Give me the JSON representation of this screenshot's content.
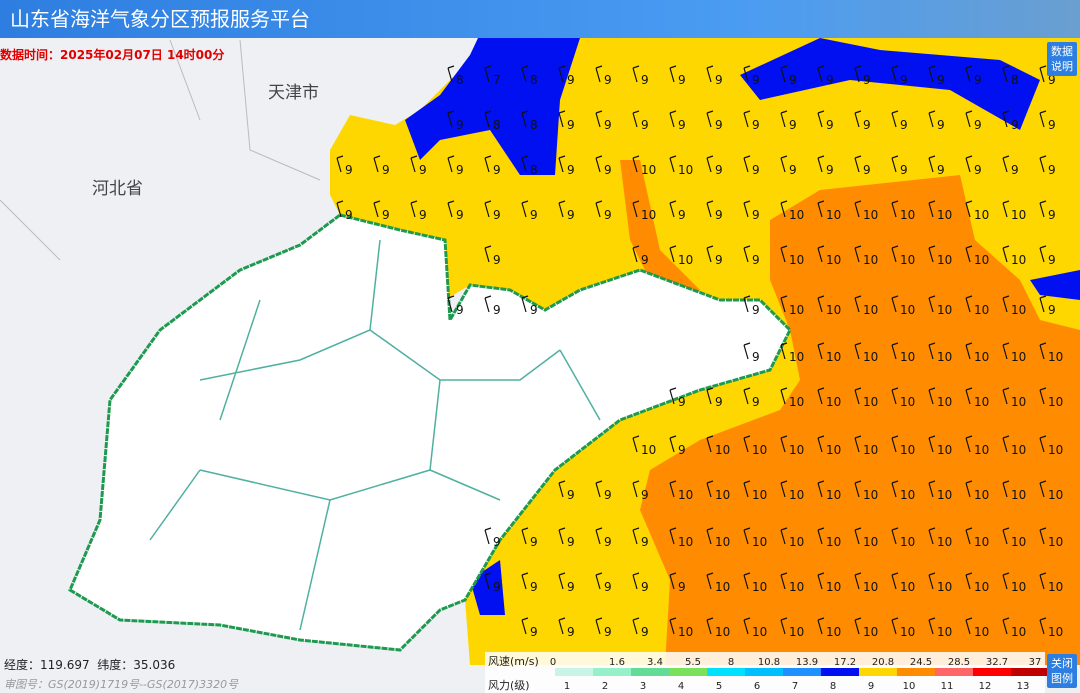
{
  "header": {
    "title": "山东省海洋气象分区预报服务平台"
  },
  "data_time": "数据时间：2025年02月07日 14时00分",
  "buttons": {
    "data_note": "数据说明",
    "close_legend": "关闭图例"
  },
  "places": [
    "天津市",
    "河北省"
  ],
  "wind_labels": [
    [
      null,
      null,
      null,
      8,
      7,
      8,
      9,
      9,
      9,
      9,
      9,
      9,
      9,
      9,
      9,
      9,
      9,
      9,
      8,
      9
    ],
    [
      null,
      null,
      null,
      9,
      8,
      8,
      9,
      9,
      9,
      9,
      9,
      9,
      9,
      9,
      9,
      9,
      9,
      9,
      9,
      9
    ],
    [
      9,
      9,
      9,
      9,
      9,
      8,
      9,
      9,
      10,
      10,
      9,
      9,
      9,
      9,
      9,
      9,
      9,
      9,
      9,
      9
    ],
    [
      9,
      9,
      9,
      9,
      9,
      9,
      9,
      9,
      10,
      9,
      9,
      9,
      10,
      10,
      10,
      10,
      10,
      10,
      10,
      9
    ],
    [
      null,
      null,
      null,
      null,
      9,
      null,
      null,
      null,
      9,
      10,
      9,
      9,
      10,
      10,
      10,
      10,
      10,
      10,
      10,
      9
    ],
    [
      null,
      null,
      null,
      9,
      9,
      9,
      null,
      null,
      null,
      null,
      null,
      9,
      10,
      10,
      10,
      10,
      10,
      10,
      10,
      9
    ],
    [
      null,
      null,
      null,
      null,
      null,
      null,
      null,
      null,
      null,
      null,
      null,
      9,
      10,
      10,
      10,
      10,
      10,
      10,
      10,
      10
    ],
    [
      null,
      null,
      null,
      null,
      null,
      null,
      null,
      null,
      null,
      9,
      9,
      9,
      10,
      10,
      10,
      10,
      10,
      10,
      10,
      10
    ],
    [
      null,
      null,
      null,
      null,
      null,
      null,
      null,
      null,
      10,
      9,
      10,
      10,
      10,
      10,
      10,
      10,
      10,
      10,
      10,
      10
    ],
    [
      null,
      null,
      null,
      null,
      null,
      null,
      9,
      9,
      9,
      10,
      10,
      10,
      10,
      10,
      10,
      10,
      10,
      10,
      10,
      10
    ],
    [
      null,
      null,
      null,
      null,
      9,
      9,
      9,
      9,
      9,
      10,
      10,
      10,
      10,
      10,
      10,
      10,
      10,
      10,
      10,
      10
    ],
    [
      null,
      null,
      null,
      null,
      9,
      9,
      9,
      9,
      9,
      9,
      10,
      10,
      10,
      10,
      10,
      10,
      10,
      10,
      10,
      10
    ],
    [
      null,
      null,
      null,
      null,
      null,
      9,
      9,
      9,
      9,
      10,
      10,
      10,
      10,
      10,
      10,
      10,
      10,
      10,
      10,
      10
    ]
  ],
  "legend": {
    "speed_label": "风速(m/s)",
    "speeds": [
      0,
      1.6,
      3.4,
      5.5,
      8,
      10.8,
      13.9,
      17.2,
      20.8,
      24.5,
      28.5,
      32.7,
      37
    ],
    "force_label": "风力(级)",
    "forces": [
      1,
      2,
      3,
      4,
      5,
      6,
      7,
      8,
      9,
      10,
      11,
      12,
      13
    ],
    "colors": [
      "#c8f5e6",
      "#96f0c8",
      "#64dc96",
      "#7be05a",
      "#00e0ff",
      "#00bfff",
      "#1e90ff",
      "#0010f0",
      "#ffd700",
      "#ff8c00",
      "#ff6666",
      "#ff0000",
      "#c00000"
    ]
  },
  "status": {
    "lon": "经度：119.697",
    "lat": "纬度：35.036",
    "review": "审图号：GS(2019)1719号--GS(2017)3320号"
  }
}
